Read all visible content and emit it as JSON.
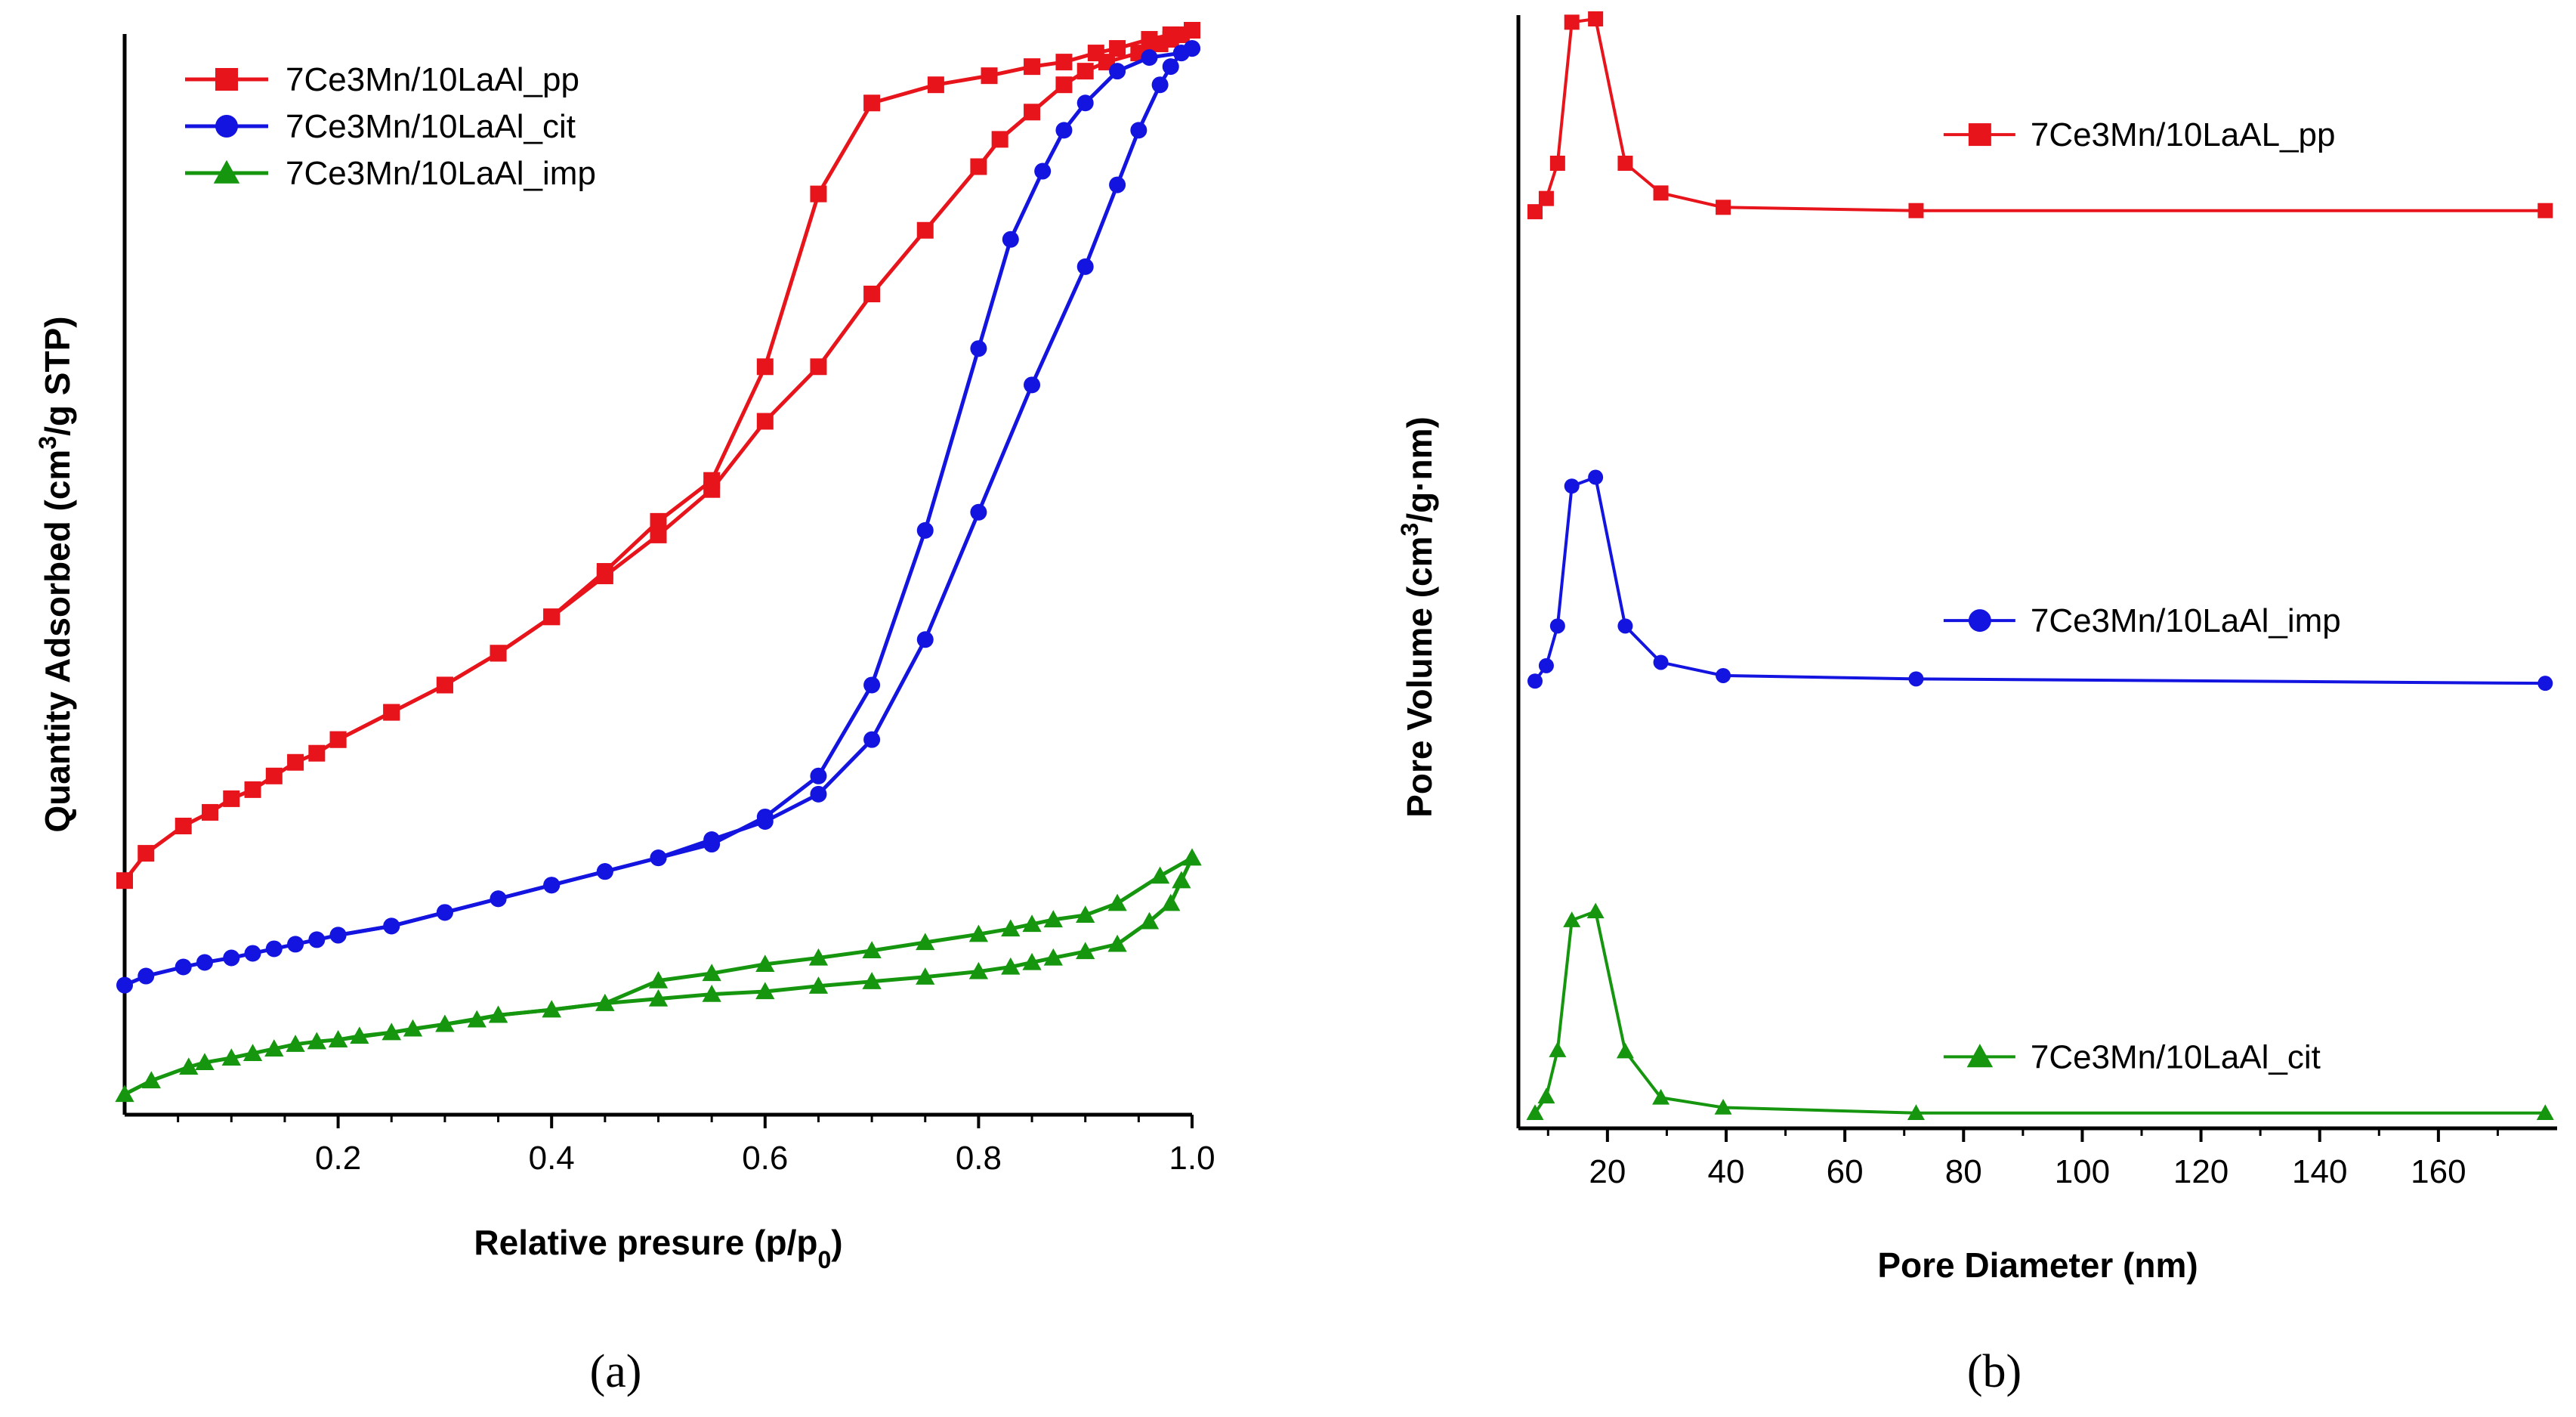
{
  "chart_data": [
    {
      "panel_label": "(a)",
      "type": "line",
      "xlabel_main": "Relative presure (p/p",
      "xlabel_sub": "0",
      "xlabel_end": ")",
      "ylabel_main": "Quantity Adsorbed (cm",
      "ylabel_sup": "3",
      "ylabel_end": "/g STP)",
      "xlim": [
        0,
        1.0
      ],
      "ylim": [
        0,
        100
      ],
      "y_ticks_shown": false,
      "xticks": [
        0.2,
        0.4,
        0.6,
        0.8,
        1.0
      ],
      "xtick_labels": [
        "0.2",
        "0.4",
        "0.6",
        "0.8",
        "1.0"
      ],
      "legend_position": "top-left",
      "series": [
        {
          "name": "7Ce3Mn/10LaAl_pp",
          "color": "#e8141c",
          "marker": "square",
          "branches": [
            {
              "x": [
                0.0,
                0.02,
                0.055,
                0.08,
                0.1,
                0.12,
                0.14,
                0.16,
                0.18,
                0.2,
                0.25,
                0.3,
                0.35,
                0.4,
                0.45,
                0.5,
                0.55,
                0.6,
                0.65,
                0.7,
                0.75,
                0.8,
                0.82,
                0.85,
                0.88,
                0.9,
                0.92,
                0.95,
                0.97,
                0.98,
                0.99,
                1.0
              ],
              "y": [
                23.5,
                26.5,
                29.5,
                31,
                32.5,
                33.5,
                35,
                36.5,
                37.5,
                39,
                42,
                45,
                48.5,
                52.5,
                57,
                61.5,
                66.5,
                74,
                80,
                88,
                95,
                102,
                105,
                108,
                111,
                112.5,
                113.5,
                114.5,
                115.5,
                116,
                116.5,
                117
              ]
            },
            {
              "x": [
                1.0,
                0.98,
                0.96,
                0.93,
                0.91,
                0.88,
                0.85,
                0.81,
                0.76,
                0.7,
                0.65,
                0.6,
                0.55,
                0.5,
                0.45,
                0.4,
                0.35,
                0.3,
                0.25,
                0.2
              ],
              "y": [
                117,
                116.5,
                116,
                115,
                114.5,
                113.5,
                113,
                112,
                111,
                109,
                99,
                80,
                67.5,
                63,
                57.5,
                52.5,
                48.5,
                45,
                42,
                39
              ]
            }
          ]
        },
        {
          "name": "7Ce3Mn/10LaAl_cit",
          "color": "#1414e0",
          "marker": "circle",
          "branches": [
            {
              "x": [
                0.0,
                0.02,
                0.055,
                0.075,
                0.1,
                0.12,
                0.14,
                0.16,
                0.18,
                0.2,
                0.25,
                0.3,
                0.35,
                0.4,
                0.45,
                0.5,
                0.55,
                0.6,
                0.65,
                0.7,
                0.75,
                0.8,
                0.85,
                0.9,
                0.93,
                0.95,
                0.97,
                0.98,
                0.99,
                1.0
              ],
              "y": [
                12,
                13,
                14,
                14.5,
                15,
                15.5,
                16,
                16.5,
                17,
                17.5,
                18.5,
                20,
                21.5,
                23,
                24.5,
                26,
                28,
                30,
                33,
                39,
                50,
                64,
                78,
                91,
                100,
                106,
                111,
                113,
                114.5,
                115
              ]
            },
            {
              "x": [
                1.0,
                0.99,
                0.96,
                0.93,
                0.9,
                0.88,
                0.86,
                0.83,
                0.8,
                0.75,
                0.7,
                0.65,
                0.6,
                0.55,
                0.5,
                0.45,
                0.4,
                0.35,
                0.3,
                0.25,
                0.2
              ],
              "y": [
                115,
                114.5,
                114,
                112.5,
                109,
                106,
                101.5,
                94,
                82,
                62,
                45,
                35,
                30.5,
                27.5,
                26,
                24.5,
                23,
                21.5,
                20,
                18.5,
                17.5
              ]
            }
          ]
        },
        {
          "name": "7Ce3Mn/10LaAl_imp",
          "color": "#16960f",
          "marker": "triangle",
          "branches": [
            {
              "x": [
                0.0,
                0.025,
                0.06,
                0.075,
                0.1,
                0.12,
                0.14,
                0.16,
                0.18,
                0.2,
                0.22,
                0.25,
                0.27,
                0.3,
                0.33,
                0.35,
                0.4,
                0.45,
                0.5,
                0.55,
                0.6,
                0.65,
                0.7,
                0.75,
                0.8,
                0.83,
                0.85,
                0.87,
                0.9,
                0.93,
                0.96,
                0.98,
                0.99,
                1.0
              ],
              "y": [
                0,
                1.5,
                3,
                3.5,
                4,
                4.5,
                5,
                5.5,
                5.8,
                6,
                6.4,
                6.8,
                7.2,
                7.7,
                8.2,
                8.7,
                9.3,
                10,
                10.5,
                11,
                11.3,
                11.9,
                12.4,
                12.9,
                13.5,
                14,
                14.5,
                15,
                15.7,
                16.5,
                19,
                21,
                23.5,
                26
              ]
            },
            {
              "x": [
                1.0,
                0.97,
                0.93,
                0.9,
                0.87,
                0.85,
                0.83,
                0.8,
                0.75,
                0.7,
                0.65,
                0.6,
                0.55,
                0.5,
                0.45,
                0.4,
                0.35,
                0.3,
                0.25,
                0.2
              ],
              "y": [
                26,
                24,
                21,
                19.7,
                19.2,
                18.7,
                18.2,
                17.6,
                16.7,
                15.8,
                15,
                14.3,
                13.3,
                12.5,
                10,
                9.3,
                8.7,
                7.7,
                6.8,
                6
              ]
            }
          ]
        }
      ]
    },
    {
      "panel_label": "(b)",
      "type": "line",
      "xlabel": "Pore Diameter (nm)",
      "ylabel_main": "Pore Volume (cm",
      "ylabel_sup": "3",
      "ylabel_end": "/g·nm)",
      "xlim": [
        5,
        180
      ],
      "ylim": [
        0,
        100
      ],
      "y_ticks_shown": false,
      "xticks": [
        20,
        40,
        60,
        80,
        100,
        120,
        140,
        160
      ],
      "xtick_labels": [
        "20",
        "40",
        "60",
        "80",
        "100",
        "120",
        "140",
        "160"
      ],
      "series": [
        {
          "name": "7Ce3Mn/10LaAL_pp",
          "color": "#e8141c",
          "marker": "square",
          "x": [
            7.8,
            9.7,
            11.6,
            14,
            18,
            23,
            29,
            39.5,
            72,
            178
          ],
          "y": [
            82.5,
            83.7,
            86.9,
            99.7,
            100,
            86.9,
            84.2,
            82.9,
            82.6,
            82.6
          ],
          "legend_label_x": 90,
          "legend_label_y": 89.5
        },
        {
          "name": "7Ce3Mn/10LaAl_imp",
          "color": "#1414e0",
          "marker": "circle",
          "x": [
            7.8,
            9.7,
            11.6,
            14,
            18,
            23,
            29,
            39.5,
            72,
            178
          ],
          "y": [
            39.9,
            41.3,
            44.9,
            57.6,
            58.4,
            44.9,
            41.6,
            40.4,
            40.1,
            39.7
          ],
          "legend_label_x": 90,
          "legend_label_y": 45.4
        },
        {
          "name": "7Ce3Mn/10LaAl_cit",
          "color": "#16960f",
          "marker": "triangle",
          "x": [
            7.8,
            9.7,
            11.6,
            14,
            18,
            23,
            29,
            39.5,
            72,
            178
          ],
          "y": [
            0.7,
            2.2,
            6.4,
            18.2,
            19.0,
            6.3,
            2.1,
            1.2,
            0.7,
            0.7
          ],
          "legend_label_x": 90,
          "legend_label_y": 5.8
        }
      ]
    }
  ]
}
